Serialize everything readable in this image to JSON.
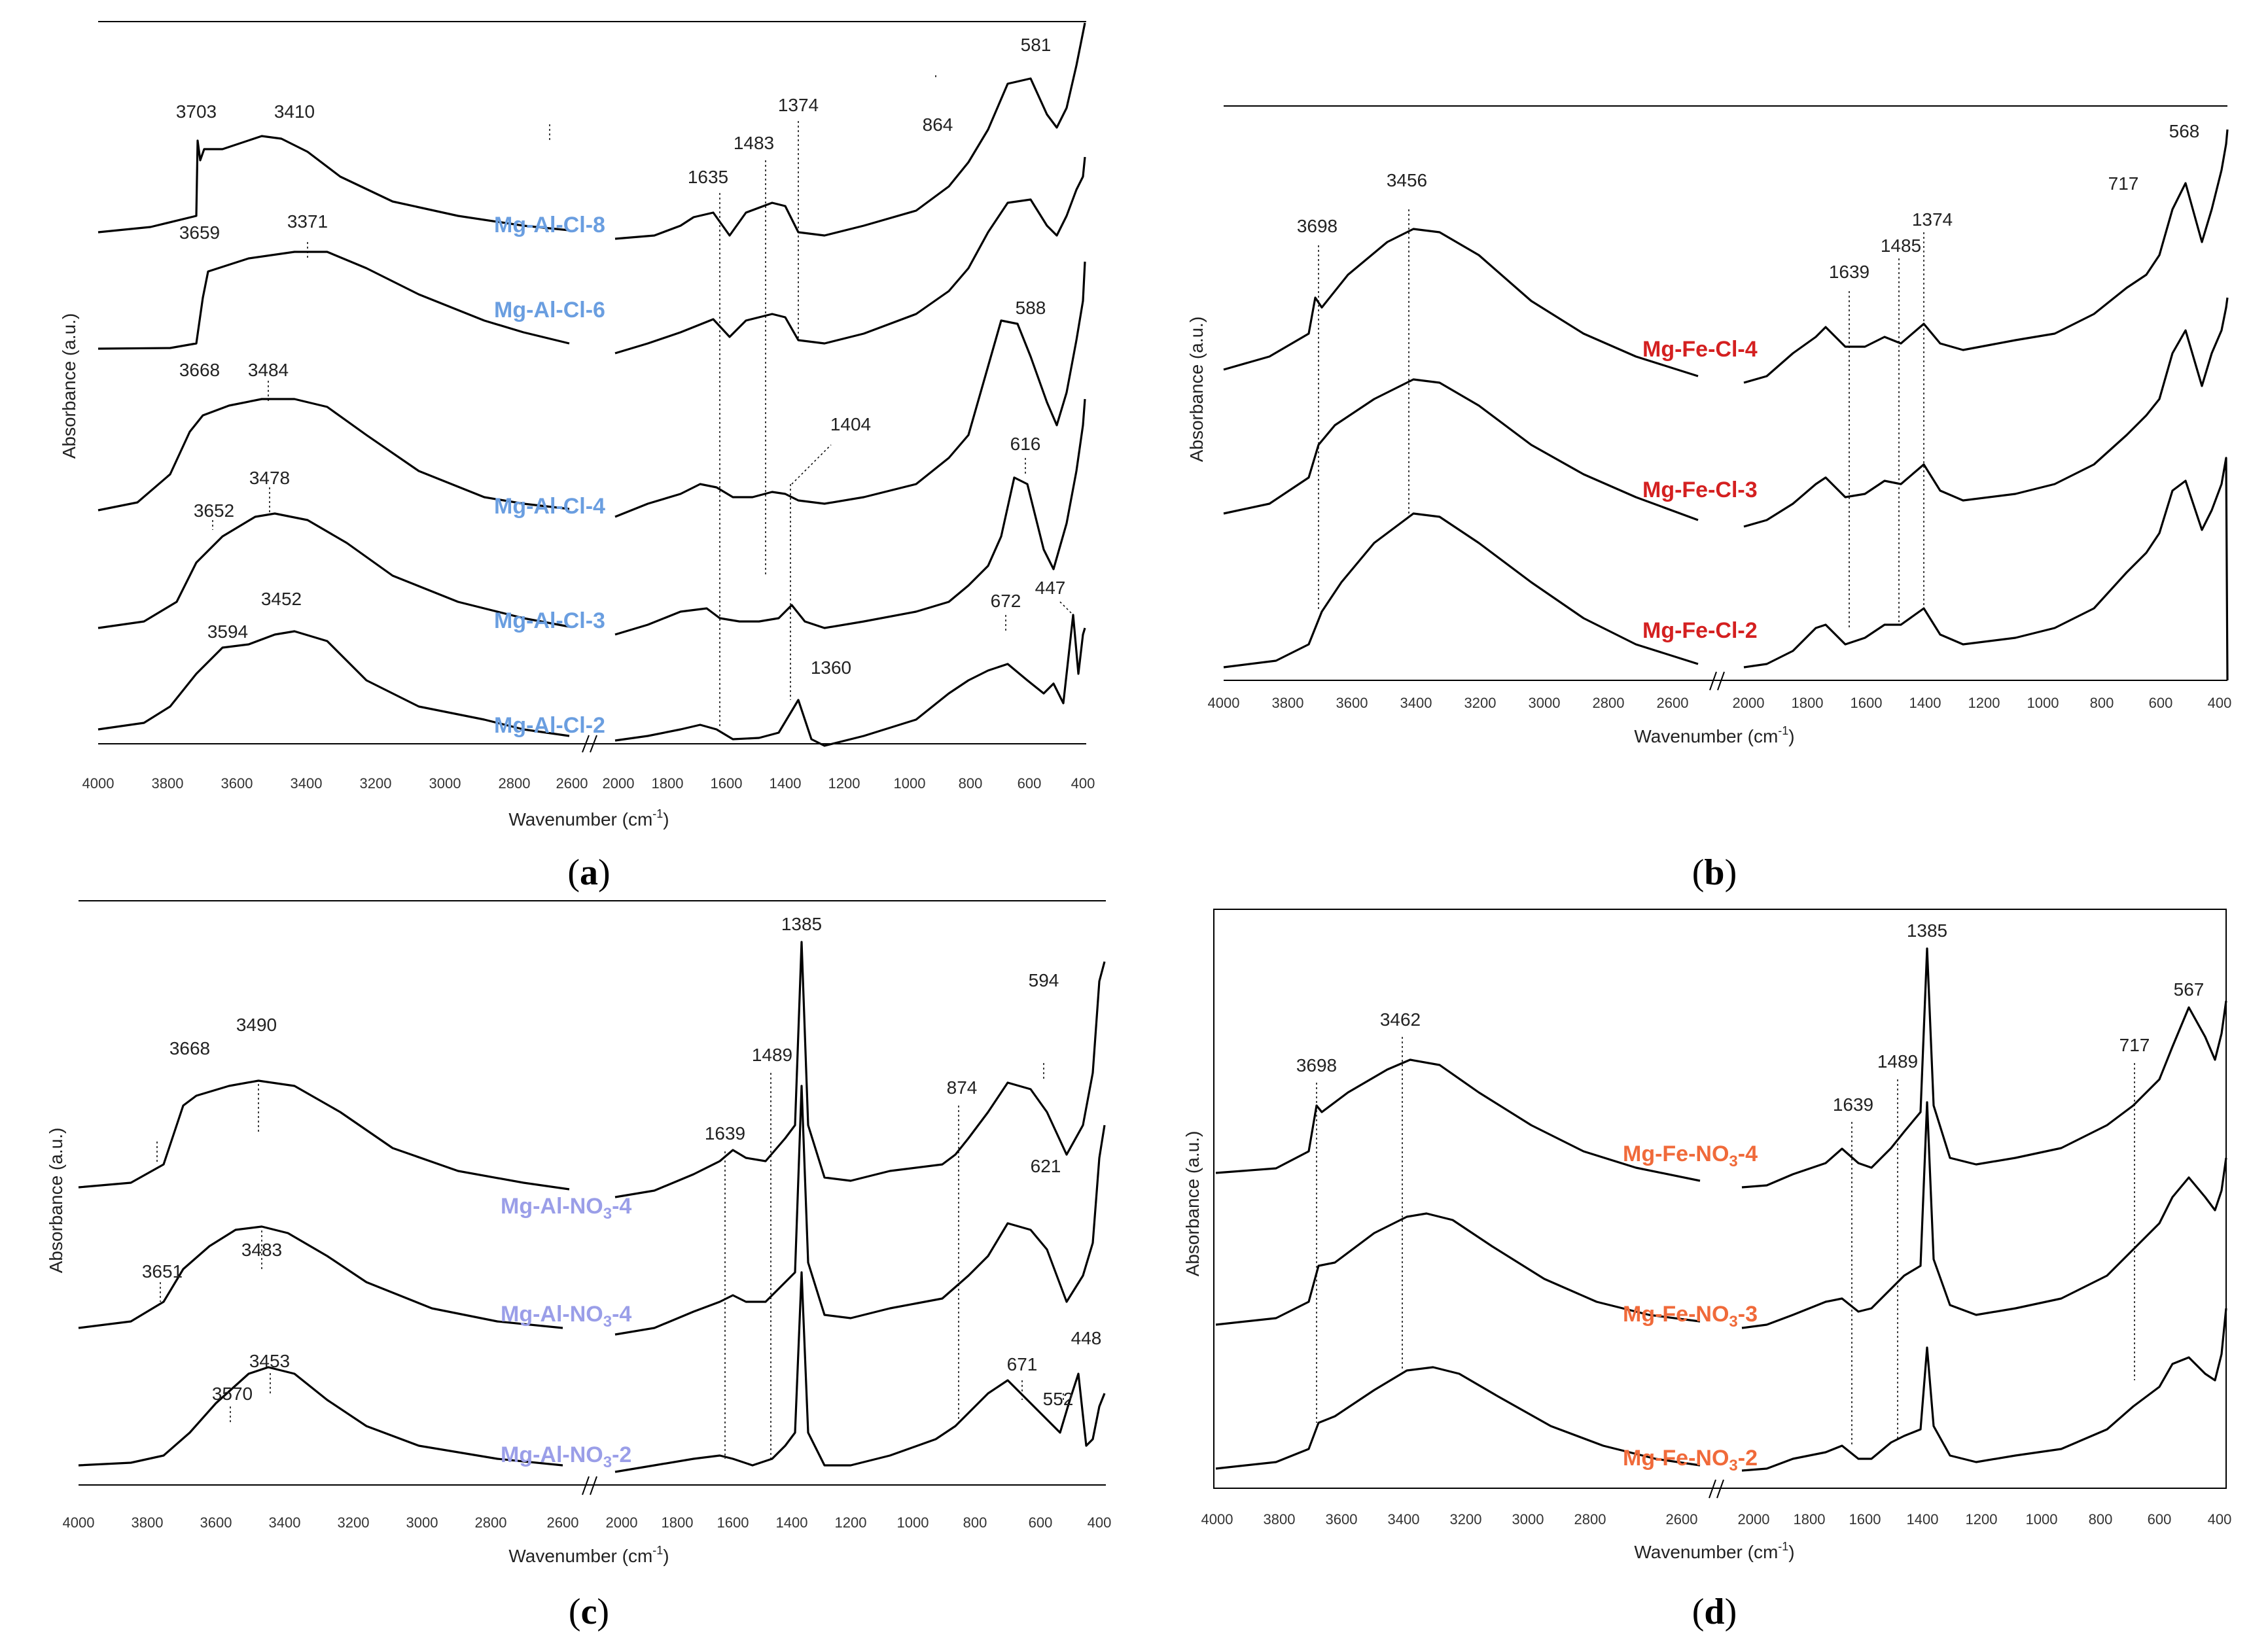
{
  "figure": {
    "panels": [
      {
        "id": "a",
        "caption": "a",
        "xlabel": "Wavenumber (cm",
        "xlabel_sup": "-1",
        "xlabel_end": ")",
        "ylabel": "Absorbance (a.u.)",
        "label_color": "#6a9ee0",
        "break_left_end": 2600,
        "break_right_start": 2000,
        "ticks_left": [
          "4000",
          "3800",
          "3600",
          "3400",
          "3200",
          "3000",
          "2800",
          "2600"
        ],
        "ticks_right": [
          "2000",
          "1800",
          "1600",
          "1400",
          "1200",
          "1000",
          "800",
          "600",
          "400"
        ],
        "samples": [
          {
            "label": "Mg-Al-Cl-8"
          },
          {
            "label": "Mg-Al-Cl-6"
          },
          {
            "label": "Mg-Al-Cl-4"
          },
          {
            "label": "Mg-Al-Cl-3"
          },
          {
            "label": "Mg-Al-Cl-2"
          }
        ],
        "annotations": [
          "3703",
          "3410",
          "3659",
          "3371",
          "3668",
          "3484",
          "3652",
          "3478",
          "3594",
          "3452",
          "1635",
          "1483",
          "1374",
          "581",
          "864",
          "588",
          "1404",
          "616",
          "672",
          "447",
          "1360"
        ]
      },
      {
        "id": "b",
        "caption": "b",
        "xlabel": "Wavenumber (cm",
        "xlabel_sup": "-1",
        "xlabel_end": ")",
        "ylabel": "Absorbance (a.u.)",
        "label_color": "#d42020",
        "ticks_left": [
          "4000",
          "3800",
          "3600",
          "3400",
          "3200",
          "3000",
          "2800",
          "2600"
        ],
        "ticks_right": [
          "2000",
          "1800",
          "1600",
          "1400",
          "1200",
          "1000",
          "800",
          "600",
          "400"
        ],
        "samples": [
          {
            "label": "Mg-Fe-Cl-4"
          },
          {
            "label": "Mg-Fe-Cl-3"
          },
          {
            "label": "Mg-Fe-Cl-2"
          }
        ],
        "annotations": [
          "3698",
          "3456",
          "1639",
          "1485",
          "1374",
          "717",
          "568"
        ]
      },
      {
        "id": "c",
        "caption": "c",
        "xlabel": "Wavenumber (cm",
        "xlabel_sup": "-1",
        "xlabel_end": ")",
        "ylabel": "Absorbance (a.u.)",
        "label_color": "#9a9ee8",
        "ticks_left": [
          "4000",
          "3800",
          "3600",
          "3400",
          "3200",
          "3000",
          "2800",
          "2600"
        ],
        "ticks_right": [
          "2000",
          "1800",
          "1600",
          "1400",
          "1200",
          "1000",
          "800",
          "600",
          "400"
        ],
        "samples": [
          {
            "label_pre": "Mg-Al-NO",
            "label_sub": "3",
            "label_post": "-4"
          },
          {
            "label_pre": "Mg-Al-NO",
            "label_sub": "3",
            "label_post": "-4"
          },
          {
            "label_pre": "Mg-Al-NO",
            "label_sub": "3",
            "label_post": "-2"
          }
        ],
        "annotations": [
          "3668",
          "3490",
          "3651",
          "3483",
          "3570",
          "3453",
          "1385",
          "1639",
          "1489",
          "874",
          "594",
          "621",
          "671",
          "448",
          "552"
        ]
      },
      {
        "id": "d",
        "caption": "d",
        "xlabel": "Wavenumber (cm",
        "xlabel_sup": "-1",
        "xlabel_end": ")",
        "ylabel": "Absorbance (a.u.)",
        "label_color": "#f06a3a",
        "ticks_left": [
          "4000",
          "3800",
          "3600",
          "3400",
          "3200",
          "3000",
          "2800",
          "2600"
        ],
        "ticks_right": [
          "2000",
          "1800",
          "1600",
          "1400",
          "1200",
          "1000",
          "800",
          "600",
          "400"
        ],
        "samples": [
          {
            "label_pre": "Mg-Fe-NO",
            "label_sub": "3",
            "label_post": "-4"
          },
          {
            "label_pre": "Mg-Fe-NO",
            "label_sub": "3",
            "label_post": "-3"
          },
          {
            "label_pre": "Mg-Fe-NO",
            "label_sub": "3",
            "label_post": "-2"
          }
        ],
        "annotations": [
          "3698",
          "3462",
          "1385",
          "1639",
          "1489",
          "717",
          "567"
        ]
      }
    ]
  },
  "chart_data": [
    {
      "type": "line",
      "panel": "a",
      "xlabel": "Wavenumber (cm-1)",
      "ylabel": "Absorbance (a.u.)",
      "x_axis": "reversed, broken between 2600 and 2000",
      "xlim": [
        4000,
        400
      ],
      "series": [
        {
          "name": "Mg-Al-Cl-8",
          "peaks_cm-1": [
            3703,
            3410,
            1635,
            1483,
            1374,
            864,
            581
          ]
        },
        {
          "name": "Mg-Al-Cl-6",
          "peaks_cm-1": [
            3659,
            3371
          ]
        },
        {
          "name": "Mg-Al-Cl-4",
          "peaks_cm-1": [
            3668,
            3484,
            1404,
            588
          ]
        },
        {
          "name": "Mg-Al-Cl-3",
          "peaks_cm-1": [
            3652,
            3478,
            616
          ]
        },
        {
          "name": "Mg-Al-Cl-2",
          "peaks_cm-1": [
            3594,
            3452,
            1360,
            672,
            447
          ]
        }
      ]
    },
    {
      "type": "line",
      "panel": "b",
      "xlabel": "Wavenumber (cm-1)",
      "ylabel": "Absorbance (a.u.)",
      "x_axis": "reversed, broken between 2600 and 2000",
      "xlim": [
        4000,
        400
      ],
      "series": [
        {
          "name": "Mg-Fe-Cl-4",
          "peaks_cm-1": [
            3698,
            3456,
            1639,
            1485,
            1374,
            717,
            568
          ]
        },
        {
          "name": "Mg-Fe-Cl-3",
          "peaks_cm-1": [
            3698,
            3456,
            1639,
            1485,
            1374
          ]
        },
        {
          "name": "Mg-Fe-Cl-2",
          "peaks_cm-1": [
            3698,
            3456,
            1639,
            1485,
            1374
          ]
        }
      ]
    },
    {
      "type": "line",
      "panel": "c",
      "xlabel": "Wavenumber (cm-1)",
      "ylabel": "Absorbance (a.u.)",
      "x_axis": "reversed, broken between 2600 and 2000",
      "xlim": [
        4000,
        400
      ],
      "series": [
        {
          "name": "Mg-Al-NO3-4",
          "peaks_cm-1": [
            3668,
            3490,
            1639,
            1489,
            1385,
            874,
            594
          ]
        },
        {
          "name": "Mg-Al-NO3-4",
          "peaks_cm-1": [
            3651,
            3483,
            621
          ]
        },
        {
          "name": "Mg-Al-NO3-2",
          "peaks_cm-1": [
            3570,
            3453,
            671,
            552,
            448
          ]
        }
      ]
    },
    {
      "type": "line",
      "panel": "d",
      "xlabel": "Wavenumber (cm-1)",
      "ylabel": "Absorbance (a.u.)",
      "x_axis": "reversed, broken between 2600 and 2000",
      "xlim": [
        4000,
        400
      ],
      "series": [
        {
          "name": "Mg-Fe-NO3-4",
          "peaks_cm-1": [
            3698,
            3462,
            1639,
            1489,
            1385,
            717,
            567
          ]
        },
        {
          "name": "Mg-Fe-NO3-3",
          "peaks_cm-1": [
            3698,
            3462,
            1639,
            1489,
            1385
          ]
        },
        {
          "name": "Mg-Fe-NO3-2",
          "peaks_cm-1": [
            3698,
            3462,
            1639,
            1489,
            1385
          ]
        }
      ]
    }
  ]
}
